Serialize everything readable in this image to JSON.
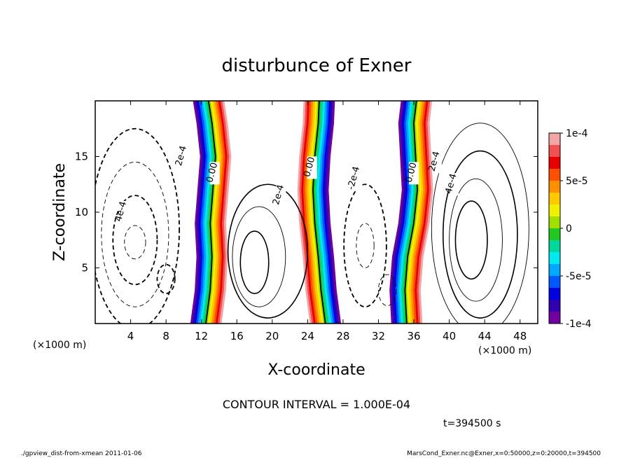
{
  "chart_data": {
    "type": "contour",
    "title": "disturbunce of Exner",
    "xlabel": "X-coordinate",
    "ylabel": "Z-coordinate",
    "x_unit_label": "(×1000 m)",
    "y_unit_label": "(×1000 m)",
    "xlim": [
      0,
      50
    ],
    "ylim": [
      0,
      20
    ],
    "x_ticks": [
      4,
      8,
      12,
      16,
      20,
      24,
      28,
      32,
      36,
      40,
      44,
      48
    ],
    "y_ticks": [
      5,
      10,
      15
    ],
    "colorbar": {
      "min": -0.0001,
      "max": 0.0001,
      "tick_labels": [
        "1e-4",
        "5e-5",
        "0",
        "-5e-5",
        "-1e-4"
      ],
      "tick_values": [
        0.0001,
        5e-05,
        0,
        -5e-05,
        -0.0001
      ],
      "colors": [
        "#f4a6a6",
        "#f05050",
        "#e80000",
        "#ff5000",
        "#ff9000",
        "#ffc800",
        "#f0f000",
        "#a0e000",
        "#20c820",
        "#00d8a0",
        "#00e8f0",
        "#00a8ff",
        "#0058ff",
        "#0000e0",
        "#3000b0",
        "#7000a0"
      ]
    },
    "contour_labels": [
      {
        "text": "4e-4",
        "x": 3.2,
        "z": 10.0
      },
      {
        "text": "2e-4",
        "x": 10.0,
        "z": 15.0
      },
      {
        "text": "0.00",
        "x": 13.5,
        "z": 13.5
      },
      {
        "text": "2e-4",
        "x": 21.0,
        "z": 11.5
      },
      {
        "text": "0.00",
        "x": 24.5,
        "z": 14.0
      },
      {
        "text": "-2e-4",
        "x": 29.5,
        "z": 13.0
      },
      {
        "text": "0.00",
        "x": 36.0,
        "z": 13.5
      },
      {
        "text": "2e-4",
        "x": 38.6,
        "z": 14.5
      },
      {
        "text": "4e-4",
        "x": 40.5,
        "z": 12.5
      }
    ],
    "zero_lines": [
      [
        [
          12.5,
          0
        ],
        [
          13.0,
          3
        ],
        [
          13.2,
          6
        ],
        [
          13.0,
          9
        ],
        [
          13.3,
          12
        ],
        [
          13.6,
          15
        ],
        [
          13.2,
          18
        ],
        [
          12.8,
          20
        ]
      ],
      [
        [
          26.0,
          0
        ],
        [
          25.5,
          3
        ],
        [
          25.2,
          6
        ],
        [
          24.8,
          9
        ],
        [
          24.6,
          12
        ],
        [
          24.8,
          15
        ],
        [
          25.2,
          18
        ],
        [
          25.3,
          20
        ]
      ],
      [
        [
          35.2,
          0
        ],
        [
          35.0,
          3
        ],
        [
          35.3,
          6
        ],
        [
          36.0,
          9
        ],
        [
          36.4,
          12
        ],
        [
          36.2,
          15
        ],
        [
          36.0,
          18
        ],
        [
          36.3,
          20
        ]
      ]
    ],
    "positive_bands": [
      [
        [
          12.5,
          0
        ],
        [
          13.0,
          3
        ],
        [
          13.2,
          6
        ],
        [
          13.0,
          9
        ],
        [
          13.3,
          12
        ],
        [
          13.6,
          15
        ],
        [
          13.2,
          18
        ],
        [
          12.8,
          20
        ]
      ],
      [
        [
          35.2,
          0
        ],
        [
          35.0,
          3
        ],
        [
          35.3,
          6
        ],
        [
          36.0,
          9
        ],
        [
          36.4,
          12
        ],
        [
          36.2,
          15
        ],
        [
          36.0,
          18
        ],
        [
          36.3,
          20
        ]
      ]
    ],
    "negative_bands": [
      [
        [
          26.0,
          0
        ],
        [
          25.5,
          3
        ],
        [
          25.2,
          6
        ],
        [
          24.8,
          9
        ],
        [
          24.6,
          12
        ],
        [
          24.8,
          15
        ],
        [
          25.2,
          18
        ],
        [
          25.3,
          20
        ]
      ]
    ],
    "closed_contours_solid": [
      {
        "cx": 19.5,
        "cz": 6.5,
        "rx": 4.5,
        "rz": 6.0
      },
      {
        "cx": 18.5,
        "cz": 6.0,
        "rx": 3.0,
        "rz": 4.5
      },
      {
        "cx": 18.0,
        "cz": 5.5,
        "rx": 1.6,
        "rz": 2.8
      },
      {
        "cx": 43.5,
        "cz": 8.5,
        "rx": 5.5,
        "rz": 9.5
      },
      {
        "cx": 43.5,
        "cz": 8.0,
        "rx": 4.2,
        "rz": 7.5
      },
      {
        "cx": 43.0,
        "cz": 7.5,
        "rx": 3.0,
        "rz": 5.5
      },
      {
        "cx": 42.5,
        "cz": 7.5,
        "rx": 1.8,
        "rz": 3.5
      }
    ],
    "closed_contours_dashed": [
      {
        "cx": 4.5,
        "cz": 8.5,
        "rx": 5.0,
        "rz": 9.0
      },
      {
        "cx": 4.5,
        "cz": 8.0,
        "rx": 3.8,
        "rz": 6.5
      },
      {
        "cx": 4.5,
        "cz": 7.5,
        "rx": 2.5,
        "rz": 4.0
      },
      {
        "cx": 4.5,
        "cz": 7.3,
        "rx": 1.2,
        "rz": 1.5
      },
      {
        "cx": 30.5,
        "cz": 7.0,
        "rx": 2.4,
        "rz": 5.5
      },
      {
        "cx": 30.5,
        "cz": 7.0,
        "rx": 1.0,
        "rz": 2.0
      },
      {
        "cx": 8.0,
        "cz": 4.0,
        "rx": 1.0,
        "rz": 1.3
      },
      {
        "cx": 33.0,
        "cz": 3.0,
        "rx": 1.0,
        "rz": 1.4
      }
    ]
  },
  "footer": {
    "contour_interval": "CONTOUR INTERVAL = 1.000E-04",
    "time": "t=394500 s",
    "left_note": "./gpview_dist-from-xmean  2011-01-06",
    "right_note": "MarsCond_Exner.nc@Exner,x=0:50000,z=0:20000,t=394500"
  }
}
